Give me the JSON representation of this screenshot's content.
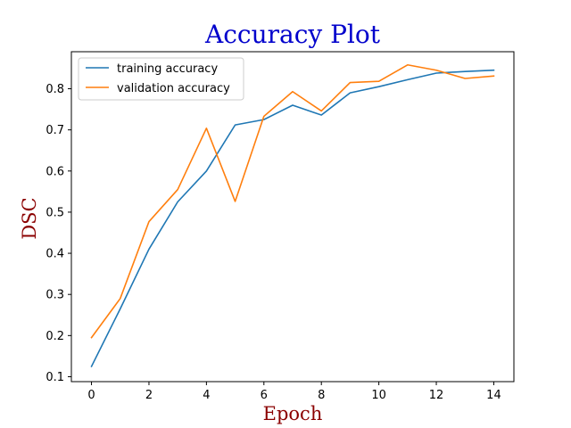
{
  "chart_data": {
    "type": "line",
    "title": "Accuracy Plot",
    "xlabel": "Epoch",
    "ylabel": "DSC",
    "xlim": [
      -0.7,
      14.7
    ],
    "ylim": [
      0.088,
      0.89
    ],
    "x_ticks": [
      0,
      2,
      4,
      6,
      8,
      10,
      12,
      14
    ],
    "y_ticks": [
      0.1,
      0.2,
      0.3,
      0.4,
      0.5,
      0.6,
      0.7,
      0.8
    ],
    "grid": false,
    "legend_position": "upper left",
    "title_color": "#0000cc",
    "label_color": "#8b0000",
    "x": [
      0,
      1,
      2,
      3,
      4,
      5,
      6,
      7,
      8,
      9,
      10,
      11,
      12,
      13,
      14
    ],
    "series": [
      {
        "name": "training accuracy",
        "color": "#1f77b4",
        "values": [
          0.125,
          0.265,
          0.41,
          0.525,
          0.6,
          0.712,
          0.725,
          0.76,
          0.736,
          0.79,
          0.805,
          0.822,
          0.838,
          0.842,
          0.845
        ]
      },
      {
        "name": "validation accuracy",
        "color": "#ff7f0e",
        "values": [
          0.195,
          0.29,
          0.477,
          0.555,
          0.704,
          0.526,
          0.733,
          0.793,
          0.746,
          0.815,
          0.818,
          0.858,
          0.845,
          0.825,
          0.831
        ]
      }
    ]
  }
}
